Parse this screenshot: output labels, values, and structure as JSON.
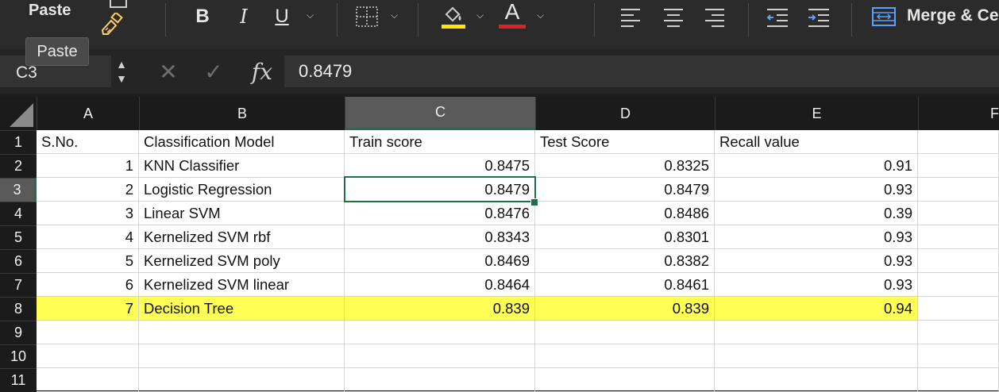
{
  "ribbon": {
    "paste_label": "Paste",
    "paste_tooltip": "Paste",
    "bold_label": "B",
    "italic_label": "I",
    "underline_label": "U",
    "font_color_label": "A",
    "merge_label": "Merge & Ce",
    "highlight_color": "#ffe500",
    "font_color": "#e02020"
  },
  "formula_bar": {
    "name_box": "C3",
    "fx_label": "fx",
    "value": "0.8479"
  },
  "columns": [
    "A",
    "B",
    "C",
    "D",
    "E",
    "F"
  ],
  "rows": [
    "1",
    "2",
    "3",
    "4",
    "5",
    "6",
    "7",
    "8",
    "9",
    "10",
    "11"
  ],
  "selected_cell": "C3",
  "table": {
    "headers": [
      "S.No.",
      "Classification Model",
      "Train score",
      "Test Score",
      "Recall value"
    ],
    "data": [
      [
        "1",
        "KNN Classifier",
        "0.8475",
        "0.8325",
        "0.91"
      ],
      [
        "2",
        "Logistic Regression",
        "0.8479",
        "0.8479",
        "0.93"
      ],
      [
        "3",
        "Linear SVM",
        "0.8476",
        "0.8486",
        "0.39"
      ],
      [
        "4",
        "Kernelized SVM rbf",
        "0.8343",
        "0.8301",
        "0.93"
      ],
      [
        "5",
        "Kernelized SVM poly",
        "0.8469",
        "0.8382",
        "0.93"
      ],
      [
        "6",
        "Kernelized SVM linear",
        "0.8464",
        "0.8461",
        "0.93"
      ],
      [
        "7",
        "Decision Tree",
        "0.839",
        "0.839",
        "0.94"
      ]
    ],
    "highlight_row_color": "#ffff55"
  }
}
